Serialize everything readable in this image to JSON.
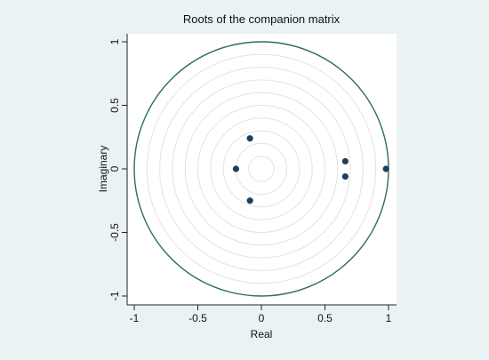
{
  "chart_data": {
    "type": "scatter",
    "title": "Roots of the companion matrix",
    "xlabel": "Real",
    "ylabel": "Imaginary",
    "xlim": [
      -1.05,
      1.05
    ],
    "ylim": [
      -1.05,
      1.05
    ],
    "xticks": [
      -1,
      -0.5,
      0,
      0.5,
      1
    ],
    "yticks": [
      -1,
      -0.5,
      0,
      0.5,
      1
    ],
    "xtick_labels": [
      "-1",
      "-0.5",
      "0",
      "0.5",
      "1"
    ],
    "ytick_labels": [
      "-1",
      "-0.5",
      "0",
      "0.5",
      "1"
    ],
    "unit_circle_radius": 1,
    "guide_circle_radii": [
      0.1,
      0.2,
      0.3,
      0.4,
      0.5,
      0.6,
      0.7,
      0.8,
      0.9
    ],
    "points": [
      {
        "x": 0.98,
        "y": 0.0
      },
      {
        "x": 0.66,
        "y": 0.06
      },
      {
        "x": 0.66,
        "y": -0.06
      },
      {
        "x": -0.09,
        "y": 0.24
      },
      {
        "x": -0.09,
        "y": -0.25
      },
      {
        "x": -0.2,
        "y": 0.0
      }
    ],
    "grid": false,
    "legend": "none",
    "colors": {
      "marker": "#1d3f5e",
      "unit_circle": "#2d6e5e",
      "guide_circles": "#e3e3e3",
      "plot_background": "#ffffff",
      "outer_background": "#eaf2f3",
      "axis": "#222222"
    }
  }
}
